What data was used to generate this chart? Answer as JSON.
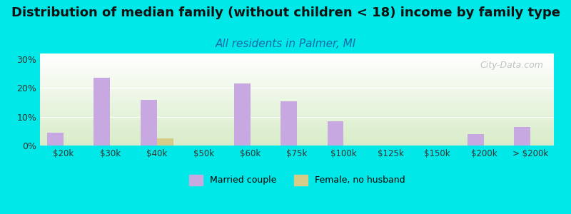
{
  "title": "Distribution of median family (without children < 18) income by family type",
  "subtitle": "All residents in Palmer, MI",
  "categories": [
    "$20k",
    "$30k",
    "$40k",
    "$50k",
    "$60k",
    "$75k",
    "$100k",
    "$125k",
    "$150k",
    "$200k",
    "> $200k"
  ],
  "married_couple": [
    4.5,
    23.5,
    16.0,
    0.0,
    21.5,
    15.5,
    8.5,
    0.0,
    0.0,
    4.0,
    6.5
  ],
  "female_no_husband": [
    0.0,
    0.0,
    2.5,
    0.0,
    0.0,
    0.0,
    0.0,
    0.0,
    0.0,
    0.0,
    0.0
  ],
  "married_color": "#c8a8e0",
  "female_color": "#d4cc88",
  "background_color": "#00e8e8",
  "plot_bg_top": "#ffffff",
  "plot_bg_bottom": "#d8ecc8",
  "ylim": [
    0,
    32
  ],
  "yticks": [
    0,
    10,
    20,
    30
  ],
  "ytick_labels": [
    "0%",
    "10%",
    "20%",
    "30%"
  ],
  "bar_width": 0.35,
  "title_fontsize": 13,
  "subtitle_fontsize": 11,
  "watermark": "City-Data.com"
}
